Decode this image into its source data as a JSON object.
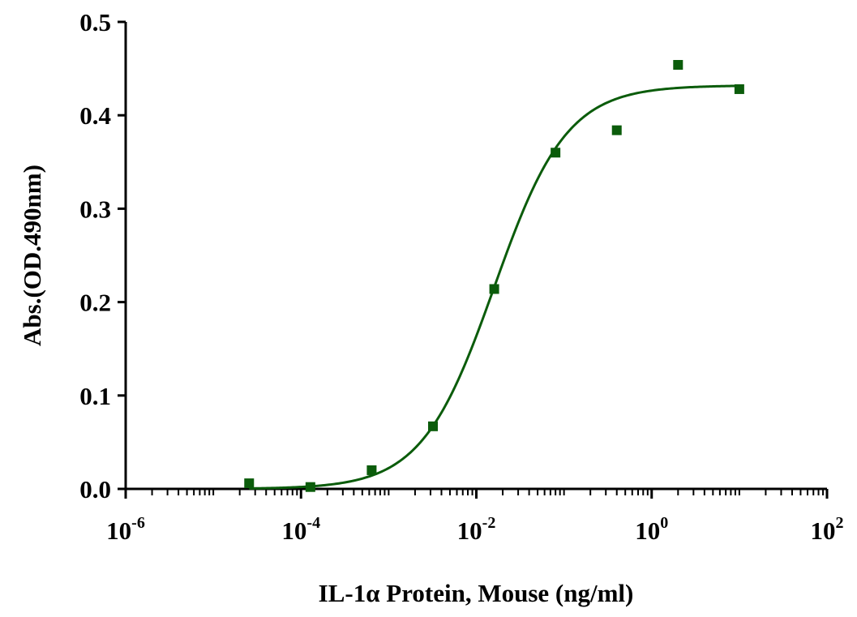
{
  "chart_data": {
    "type": "scatter",
    "title": "",
    "xlabel": "IL-1α Protein, Mouse  (ng/ml)",
    "ylabel": "Abs.(OD.490nm)",
    "xscale": "log",
    "xlim": [
      1e-06,
      100
    ],
    "ylim": [
      0,
      0.5
    ],
    "x_ticks": [
      {
        "base": "10",
        "exp": "-6",
        "value": 1e-06
      },
      {
        "base": "10",
        "exp": "-4",
        "value": 0.0001
      },
      {
        "base": "10",
        "exp": "-2",
        "value": 0.01
      },
      {
        "base": "10",
        "exp": "0",
        "value": 1
      },
      {
        "base": "10",
        "exp": "2",
        "value": 100
      }
    ],
    "y_ticks": [
      "0.0",
      "0.1",
      "0.2",
      "0.3",
      "0.4",
      "0.5"
    ],
    "y_tick_values": [
      0,
      0.1,
      0.2,
      0.3,
      0.4,
      0.5
    ],
    "grid": false,
    "color": "#0b5c0b",
    "points": [
      {
        "x": 2.56e-05,
        "y": 0.006
      },
      {
        "x": 0.000128,
        "y": 0.002
      },
      {
        "x": 0.00064,
        "y": 0.02
      },
      {
        "x": 0.0032,
        "y": 0.067
      },
      {
        "x": 0.016,
        "y": 0.214
      },
      {
        "x": 0.08,
        "y": 0.36
      },
      {
        "x": 0.4,
        "y": 0.384
      },
      {
        "x": 2,
        "y": 0.454
      },
      {
        "x": 10,
        "y": 0.428
      }
    ],
    "fit": {
      "model": "4PL",
      "bottom": 0.0,
      "top": 0.432,
      "ec50": 0.016,
      "hill": 1.05
    }
  }
}
